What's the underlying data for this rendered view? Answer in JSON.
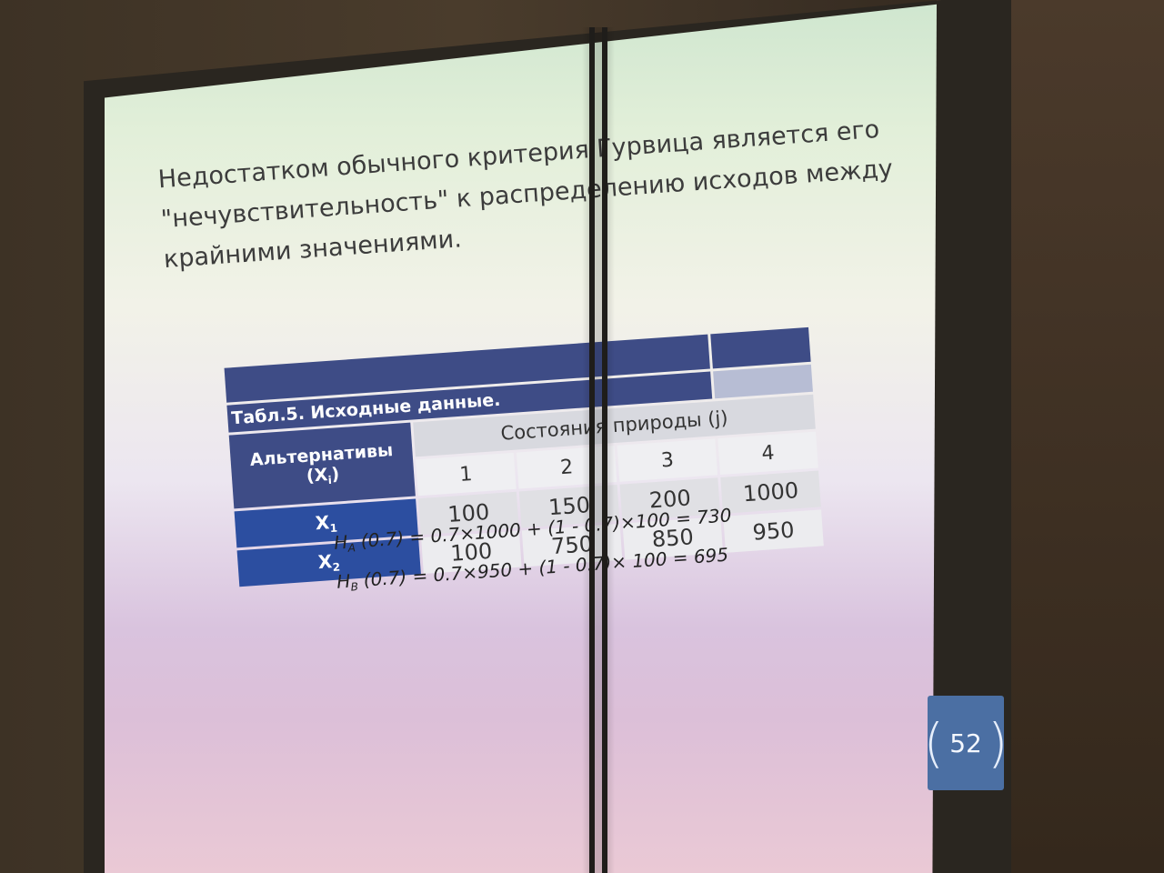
{
  "slide": {
    "heading_lines": [
      "Недостатком обычного критерия Гурвица является его",
      "\"нечувствительность\" к распределению исходов между",
      "крайними значениями."
    ],
    "table": {
      "caption": "Табл.5. Исходные данные.",
      "alternatives_header": "Альтернативы (X",
      "alternatives_header_sub": "i",
      "alternatives_header_close": ")",
      "states_header": "Состояния природы (j)",
      "columns": [
        "1",
        "2",
        "3",
        "4"
      ],
      "rows": [
        {
          "label": "X",
          "label_sub": "1",
          "values": [
            "100",
            "150",
            "200",
            "1000"
          ]
        },
        {
          "label": "X",
          "label_sub": "2",
          "values": [
            "100",
            "750",
            "850",
            "950"
          ]
        }
      ]
    },
    "formulas": [
      {
        "prefix": "H",
        "sub": "A",
        "text": " (0.7) = 0.7×1000 + (1 - 0.7)×100 = 730"
      },
      {
        "prefix": "H",
        "sub": "B",
        "text": " (0.7) = 0.7×950 + (1 - 0.7)× 100 = 695"
      }
    ],
    "page_number": "52",
    "colors": {
      "table_header": "#3e4c86",
      "row_header": "#2c4ea0",
      "badge": "#4b6fa3"
    }
  }
}
